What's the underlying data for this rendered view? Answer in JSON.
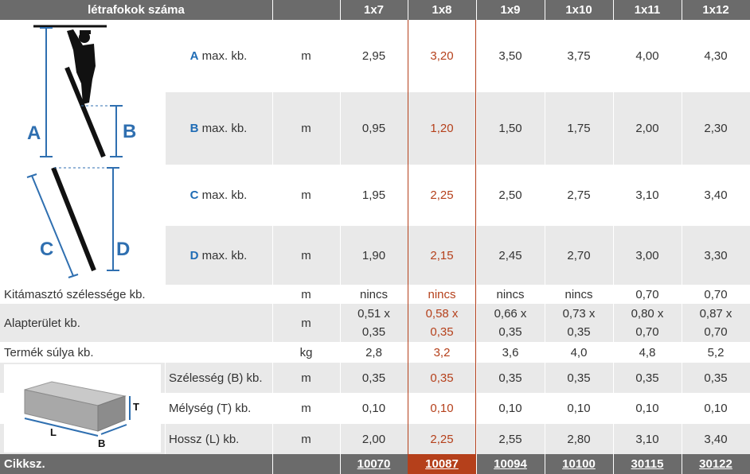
{
  "header": {
    "title": "létrafokok száma",
    "columns": [
      "1x7",
      "1x8",
      "1x9",
      "1x10",
      "1x11",
      "1x12"
    ]
  },
  "diagram_ladder": {
    "letters": [
      "A",
      "B",
      "C",
      "D"
    ]
  },
  "diagram_box": {
    "letters": [
      "T",
      "L",
      "B"
    ]
  },
  "ladder_rows": [
    {
      "key": "A",
      "label": "max. kb.",
      "unit": "m",
      "values": [
        "2,95",
        "3,20",
        "3,50",
        "3,75",
        "4,00",
        "4,30"
      ]
    },
    {
      "key": "B",
      "label": "max. kb.",
      "unit": "m",
      "values": [
        "0,95",
        "1,20",
        "1,50",
        "1,75",
        "2,00",
        "2,30"
      ]
    },
    {
      "key": "C",
      "label": "max. kb.",
      "unit": "m",
      "values": [
        "1,95",
        "2,25",
        "2,50",
        "2,75",
        "3,10",
        "3,40"
      ]
    },
    {
      "key": "D",
      "label": "max. kb.",
      "unit": "m",
      "values": [
        "1,90",
        "2,15",
        "2,45",
        "2,70",
        "3,00",
        "3,30"
      ]
    }
  ],
  "spec_rows": [
    {
      "label": "Kitámasztó szélessége kb.",
      "unit": "m",
      "values": [
        [
          "nincs"
        ],
        [
          "nincs"
        ],
        [
          "nincs"
        ],
        [
          "nincs"
        ],
        [
          "0,70"
        ],
        [
          "0,70"
        ]
      ]
    },
    {
      "label": "Alapterület kb.",
      "unit": "m",
      "values": [
        [
          "0,51 x",
          "0,35"
        ],
        [
          "0,58 x",
          "0,35"
        ],
        [
          "0,66 x",
          "0,35"
        ],
        [
          "0,73 x",
          "0,35"
        ],
        [
          "0,80 x",
          "0,70"
        ],
        [
          "0,87 x",
          "0,70"
        ]
      ]
    },
    {
      "label": "Termék súlya kb.",
      "unit": "kg",
      "values": [
        [
          "2,8"
        ],
        [
          "3,2"
        ],
        [
          "3,6"
        ],
        [
          "4,0"
        ],
        [
          "4,8"
        ],
        [
          "5,2"
        ]
      ]
    }
  ],
  "package_rows": [
    {
      "label": "Szélesség (B) kb.",
      "unit": "m",
      "values": [
        "0,35",
        "0,35",
        "0,35",
        "0,35",
        "0,35",
        "0,35"
      ]
    },
    {
      "label": "Mélység (T) kb.",
      "unit": "m",
      "values": [
        "0,10",
        "0,10",
        "0,10",
        "0,10",
        "0,10",
        "0,10"
      ]
    },
    {
      "label": "Hossz (L) kb.",
      "unit": "m",
      "values": [
        "2,00",
        "2,25",
        "2,55",
        "2,80",
        "3,10",
        "3,40"
      ]
    }
  ],
  "footer": {
    "label": "Cikksz.",
    "codes": [
      "10070",
      "10087",
      "10094",
      "10100",
      "30115",
      "30122"
    ]
  },
  "highlight_column_index": 1,
  "colors": {
    "header_bg": "#6b6b6b",
    "row_gray": "#e9e9e9",
    "row_white": "#ffffff",
    "highlight": "#b5401b",
    "key_blue": "#1f6cb5",
    "diagram_blue": "#2f6fb0"
  }
}
